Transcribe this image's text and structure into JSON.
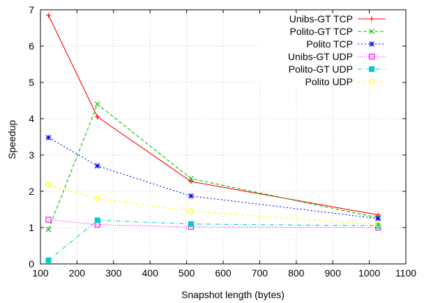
{
  "chart_data": {
    "type": "line",
    "xlabel": "Snapshot length (bytes)",
    "ylabel": "Speedup",
    "xlim": [
      100,
      1100
    ],
    "ylim": [
      0,
      7
    ],
    "xticks": [
      100,
      200,
      300,
      400,
      500,
      600,
      700,
      800,
      900,
      1000,
      1100
    ],
    "yticks": [
      0,
      1,
      2,
      3,
      4,
      5,
      6,
      7
    ],
    "grid": true,
    "legend_position": "top-right",
    "x": [
      122,
      256,
      512,
      1024
    ],
    "series": [
      {
        "name": "Unibs-GT TCP",
        "values": [
          6.85,
          4.05,
          2.27,
          1.35
        ],
        "color": "#ff0000",
        "dash": "",
        "marker": "plus"
      },
      {
        "name": "Polito-GT TCP",
        "values": [
          0.95,
          4.4,
          2.35,
          1.27
        ],
        "color": "#00c000",
        "dash": "5 3",
        "marker": "x"
      },
      {
        "name": "Polito TCP",
        "values": [
          3.48,
          2.7,
          1.87,
          1.25
        ],
        "color": "#0000ff",
        "dash": "2 3",
        "marker": "star"
      },
      {
        "name": "Unibs-GT UDP",
        "values": [
          1.22,
          1.08,
          1.02,
          1.0
        ],
        "color": "#ff00ff",
        "dash": "1 2",
        "marker": "open-square"
      },
      {
        "name": "Polito-GT UDP",
        "values": [
          0.1,
          1.2,
          1.1,
          1.05
        ],
        "color": "#00cccc",
        "dash": "6 3 1 3",
        "marker": "filled-square"
      },
      {
        "name": "Polito UDP",
        "values": [
          2.18,
          1.8,
          1.45,
          1.08
        ],
        "color": "#ffff00",
        "dash": "4 4",
        "marker": "open-circle"
      }
    ]
  }
}
